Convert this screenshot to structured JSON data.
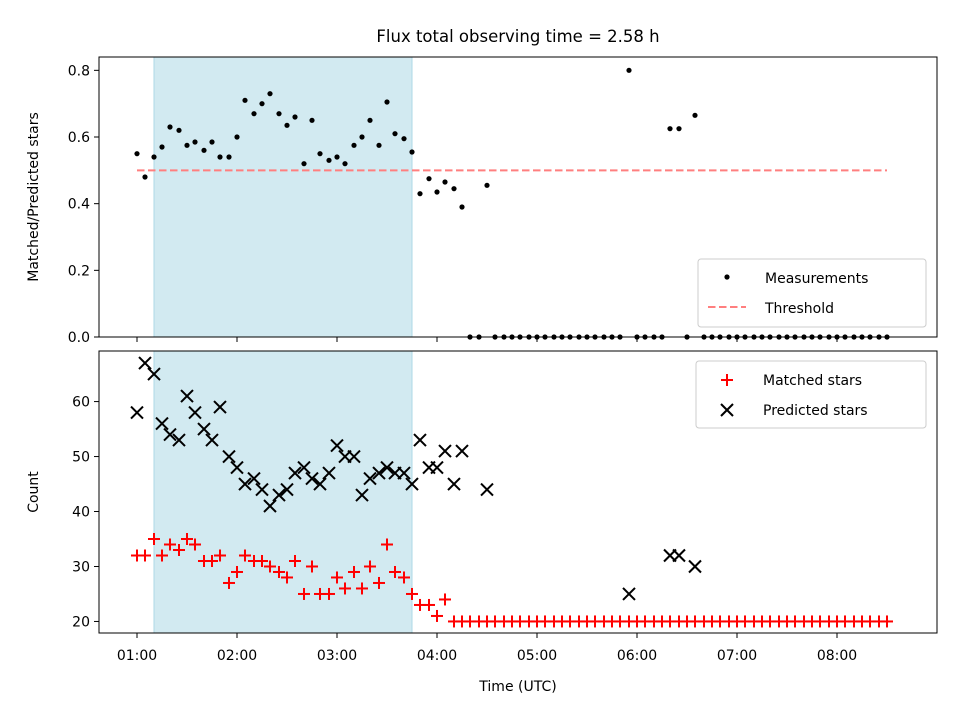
{
  "title": "Flux total observing time = 2.58 h",
  "colors": {
    "measurement": "#000000",
    "threshold": "#ff7f7f",
    "matched": "#ff0000",
    "predicted": "#000000",
    "shade": "#add8e6"
  },
  "chart_data": [
    {
      "type": "scatter",
      "ylabel": "Matched/Predicted stars",
      "ylim": [
        0,
        0.84
      ],
      "yticks": [
        0.0,
        0.2,
        0.4,
        0.6,
        0.8
      ],
      "ytick_labels": [
        "0.0",
        "0.2",
        "0.4",
        "0.6",
        "0.8"
      ],
      "xlim": [
        0.62,
        9.0
      ],
      "shaded_span": [
        1.17,
        3.75
      ],
      "grid": false,
      "legend_position": "lower-right",
      "legend": [
        "Measurements",
        "Threshold"
      ],
      "threshold": {
        "name": "Threshold",
        "y": 0.5,
        "x": [
          1.0,
          8.5
        ]
      },
      "series": [
        {
          "name": "Measurements",
          "x": [
            1.0,
            1.08,
            1.17,
            1.25,
            1.33,
            1.42,
            1.5,
            1.58,
            1.67,
            1.75,
            1.83,
            1.92,
            2.0,
            2.08,
            2.17,
            2.25,
            2.33,
            2.42,
            2.5,
            2.58,
            2.67,
            2.75,
            2.83,
            2.92,
            3.0,
            3.08,
            3.17,
            3.25,
            3.33,
            3.42,
            3.5,
            3.58,
            3.67,
            3.75,
            3.83,
            3.92,
            4.0,
            4.08,
            4.17,
            4.25,
            4.33,
            4.42,
            4.5,
            4.58,
            4.67,
            4.75,
            4.83,
            4.92,
            5.0,
            5.08,
            5.17,
            5.25,
            5.33,
            5.42,
            5.5,
            5.58,
            5.67,
            5.75,
            5.83,
            5.92,
            6.0,
            6.08,
            6.17,
            6.25,
            6.33,
            6.42,
            6.5,
            6.58,
            6.67,
            6.75,
            6.83,
            6.92,
            7.0,
            7.08,
            7.17,
            7.25,
            7.33,
            7.42,
            7.5,
            7.58,
            7.67,
            7.75,
            7.83,
            7.92,
            8.0,
            8.08,
            8.17,
            8.25,
            8.33,
            8.42,
            8.5
          ],
          "y": [
            0.55,
            0.48,
            0.54,
            0.57,
            0.63,
            0.62,
            0.575,
            0.585,
            0.56,
            0.585,
            0.54,
            0.54,
            0.6,
            0.71,
            0.67,
            0.7,
            0.73,
            0.67,
            0.635,
            0.66,
            0.52,
            0.65,
            0.55,
            0.53,
            0.54,
            0.52,
            0.575,
            0.6,
            0.65,
            0.575,
            0.705,
            0.61,
            0.595,
            0.555,
            0.43,
            0.475,
            0.435,
            0.465,
            0.445,
            0.39,
            0.0,
            0.0,
            0.455,
            0.0,
            0.0,
            0.0,
            0.0,
            0.0,
            0.0,
            0.0,
            0.0,
            0.0,
            0.0,
            0.0,
            0.0,
            0.0,
            0.0,
            0.0,
            0.0,
            0.8,
            0.0,
            0.0,
            0.0,
            0.0,
            0.625,
            0.625,
            0.0,
            0.665,
            0.0,
            0.0,
            0.0,
            0.0,
            0.0,
            0.0,
            0.0,
            0.0,
            0.0,
            0.0,
            0.0,
            0.0,
            0.0,
            0.0,
            0.0,
            0.0,
            0.0,
            0.0,
            0.0,
            0.0,
            0.0,
            0.0,
            0.0
          ]
        }
      ]
    },
    {
      "type": "scatter",
      "xlabel": "Time (UTC)",
      "ylabel": "Count",
      "ylim": [
        17.9,
        69.2
      ],
      "yticks": [
        20,
        30,
        40,
        50,
        60
      ],
      "ytick_labels": [
        "20",
        "30",
        "40",
        "50",
        "60"
      ],
      "xlim": [
        0.62,
        9.0
      ],
      "xticks": [
        1,
        2,
        3,
        4,
        5,
        6,
        7,
        8
      ],
      "xtick_labels": [
        "01:00",
        "02:00",
        "03:00",
        "04:00",
        "05:00",
        "06:00",
        "07:00",
        "08:00"
      ],
      "shaded_span": [
        1.17,
        3.75
      ],
      "grid": false,
      "legend_position": "upper-right",
      "legend": [
        "Matched stars",
        "Predicted stars"
      ],
      "series": [
        {
          "name": "Matched stars",
          "x": [
            1.0,
            1.08,
            1.17,
            1.25,
            1.33,
            1.42,
            1.5,
            1.58,
            1.67,
            1.75,
            1.83,
            1.92,
            2.0,
            2.08,
            2.17,
            2.25,
            2.33,
            2.42,
            2.5,
            2.58,
            2.67,
            2.75,
            2.83,
            2.92,
            3.0,
            3.08,
            3.17,
            3.25,
            3.33,
            3.42,
            3.5,
            3.58,
            3.67,
            3.75,
            3.83,
            3.92,
            4.0,
            4.08,
            4.17,
            4.25,
            4.33,
            4.42,
            4.5,
            4.58,
            4.67,
            4.75,
            4.83,
            4.92,
            5.0,
            5.08,
            5.17,
            5.25,
            5.33,
            5.42,
            5.5,
            5.58,
            5.67,
            5.75,
            5.83,
            5.92,
            6.0,
            6.08,
            6.17,
            6.25,
            6.33,
            6.42,
            6.5,
            6.58,
            6.67,
            6.75,
            6.83,
            6.92,
            7.0,
            7.08,
            7.17,
            7.25,
            7.33,
            7.42,
            7.5,
            7.58,
            7.67,
            7.75,
            7.83,
            7.92,
            8.0,
            8.08,
            8.17,
            8.25,
            8.33,
            8.42,
            8.5
          ],
          "y": [
            32,
            32,
            35,
            32,
            34,
            33,
            35,
            34,
            31,
            31,
            32,
            27,
            29,
            32,
            31,
            31,
            30,
            29,
            28,
            31,
            25,
            30,
            25,
            25,
            28,
            26,
            29,
            26,
            30,
            27,
            34,
            29,
            28,
            25,
            23,
            23,
            21,
            24,
            20,
            20,
            20,
            20,
            20,
            20,
            20,
            20,
            20,
            20,
            20,
            20,
            20,
            20,
            20,
            20,
            20,
            20,
            20,
            20,
            20,
            20,
            20,
            20,
            20,
            20,
            20,
            20,
            20,
            20,
            20,
            20,
            20,
            20,
            20,
            20,
            20,
            20,
            20,
            20,
            20,
            20,
            20,
            20,
            20,
            20,
            20,
            20,
            20,
            20,
            20,
            20,
            20
          ]
        },
        {
          "name": "Predicted stars",
          "x": [
            1.0,
            1.08,
            1.17,
            1.25,
            1.33,
            1.42,
            1.5,
            1.58,
            1.67,
            1.75,
            1.83,
            1.92,
            2.0,
            2.08,
            2.17,
            2.25,
            2.33,
            2.42,
            2.5,
            2.58,
            2.67,
            2.75,
            2.83,
            2.92,
            3.0,
            3.08,
            3.17,
            3.25,
            3.33,
            3.42,
            3.5,
            3.58,
            3.67,
            3.75,
            3.83,
            3.92,
            4.0,
            4.08,
            4.17,
            4.25,
            4.5,
            5.92,
            6.33,
            6.42,
            6.58
          ],
          "y": [
            58,
            67,
            65,
            56,
            54,
            53,
            61,
            58,
            55,
            53,
            59,
            50,
            48,
            45,
            46,
            44,
            41,
            43,
            44,
            47,
            48,
            46,
            45,
            47,
            52,
            50,
            50,
            43,
            46,
            47,
            48,
            47,
            47,
            45,
            53,
            48,
            48,
            51,
            45,
            51,
            44,
            25,
            32,
            32,
            30
          ]
        }
      ]
    }
  ]
}
